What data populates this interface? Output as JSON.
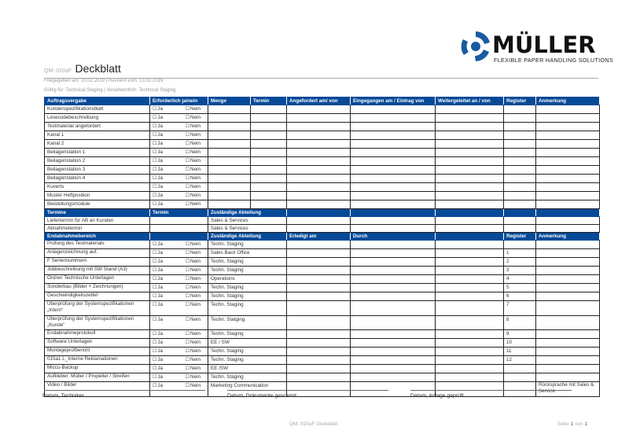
{
  "logo": {
    "word": "MÜLLER",
    "tagline": "FLEXIBLE PAPER HANDLING SOLUTIONS",
    "color": "#1a5aa0"
  },
  "header": {
    "qm": "QM: 020aF",
    "title": "Deckblatt",
    "released": "Freigegeben am: 20.02.2019 | Revision vom: 13.02.2019",
    "valid": "Gültig für: Technical Staging | Verantwortlich: Technical Staging"
  },
  "accent": "#064a98",
  "yes": "Ja",
  "no": "Nein",
  "section1": {
    "headers": [
      "Auftragsvergabe",
      "Erforderlich ja/nein",
      "Menge",
      "Termin",
      "Angefordert am/ von",
      "Eingegangen am / Eintrag von",
      "Weitergeleitet an / von",
      "Register",
      "Anmerkung"
    ],
    "rows": [
      "Kundenspezifikationsblatt",
      "Lesecodebeschreibung",
      "Testmaterial angefordert",
      "Kanal 1",
      "Kanal 2",
      "Beilagenstation 1",
      "Beilagenstation 2",
      "Beilagenstation 3",
      "Beilagenstation 4",
      "Kuverts",
      "Muster Heftposition",
      "Beistellungsmodule"
    ]
  },
  "section2": {
    "headers": [
      "Termine",
      "Termin",
      "Zuständige Abteilung"
    ],
    "rows": [
      {
        "label": "Liefertermin für AB an Kunden",
        "dept": "Sales & Services"
      },
      {
        "label": "Abnahmetermin",
        "dept": "Sales & Services"
      }
    ]
  },
  "section3": {
    "headers": [
      "Endabnahmebereich",
      "",
      "Zuständige Abteilung",
      "Erledigt am",
      "Durch",
      "",
      "Register",
      "Anmerkung"
    ],
    "rows": [
      {
        "label": "Prüfung des Testmaterials",
        "dept": "Techn. Staging",
        "reg": "",
        "note": ""
      },
      {
        "label": "Anlagenzeichnung auf.",
        "dept": "Sales Back Office",
        "reg": "1",
        "note": ""
      },
      {
        "label": "F Seriennummern",
        "dept": "Techn. Staging",
        "reg": "2",
        "note": ""
      },
      {
        "label": "Jobbeschreibung mit SW Stand (A3)",
        "dept": "Techn. Staging",
        "reg": "3",
        "note": ""
      },
      {
        "label": "Ordner Technische Unterlagen",
        "dept": "Operations",
        "reg": "4",
        "note": ""
      },
      {
        "label": "Sonderbau (Bilder + Zeichnungen)",
        "dept": "Techn. Staging",
        "reg": "5",
        "note": ""
      },
      {
        "label": "Geschwindigkeitszettel",
        "dept": "Techn. Staging",
        "reg": "6",
        "note": ""
      },
      {
        "label": "Überprüfung der Systemspezifikationen „Intern“",
        "dept": "Techn. Staging",
        "reg": "7",
        "note": "",
        "tall": true
      },
      {
        "label": "Überprüfung der Systemspezifikationen „Kunde“",
        "dept": "Techn. Statging",
        "reg": "8",
        "note": "",
        "tall": true
      },
      {
        "label": "Endabnahmeprotokoll",
        "dept": "Techn. Staging",
        "reg": "9",
        "note": ""
      },
      {
        "label": "Software Unterlagen",
        "dept": "EE / SW",
        "reg": "10",
        "note": ""
      },
      {
        "label": "Montageprüfbericht",
        "dept": "Techn. Staging",
        "reg": "11",
        "note": ""
      },
      {
        "label": "015a1 L_Interne Reklamationen",
        "dept": "Techn. Staging",
        "reg": "12",
        "note": ""
      },
      {
        "label": "Miccu-Backup",
        "dept": "EE /SW",
        "reg": "",
        "note": ""
      },
      {
        "label": "Aufkleber: Müller / Propeller / Streifen",
        "dept": "Techn. Staging",
        "reg": "",
        "note": ""
      },
      {
        "label": "Video / Bilder",
        "dept": "Marketing Communication",
        "reg": "",
        "note": "Rücksprache mit Sales & Service",
        "tall": true
      }
    ]
  },
  "signatures": [
    "Datum, Techniker",
    "Datum, Dokumente gescannt",
    "Datum, Anlage geprüft"
  ],
  "footer": {
    "doc": "QM: 020aF Deckblatt",
    "page_prefix": "Seite",
    "page": "1",
    "of": "von",
    "total": "1"
  }
}
